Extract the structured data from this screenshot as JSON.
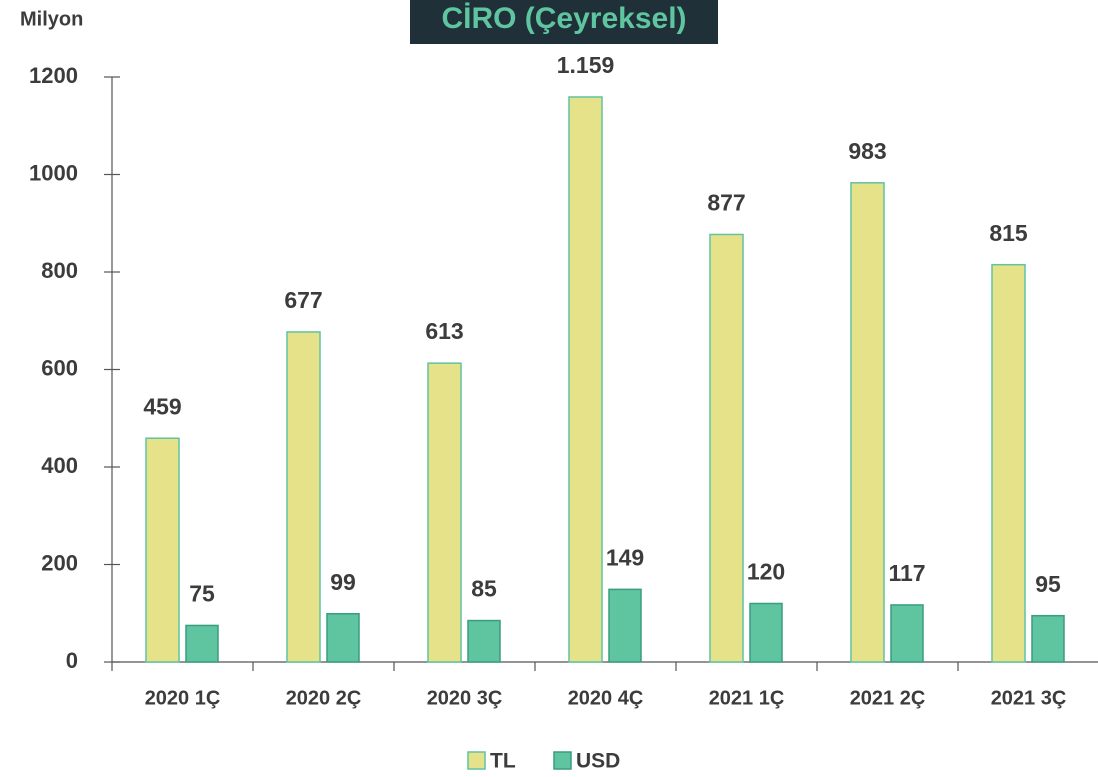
{
  "chart_data": {
    "type": "bar",
    "title": "CİRO (Çeyreksel)",
    "y_label": "Milyon",
    "categories": [
      "2020 1Ç",
      "2020 2Ç",
      "2020 3Ç",
      "2020 4Ç",
      "2021 1Ç",
      "2021 2Ç",
      "2021 3Ç"
    ],
    "series": [
      {
        "name": "TL",
        "color": "#e6e28a",
        "values": [
          459,
          677,
          613,
          1159,
          877,
          983,
          815
        ],
        "value_labels": [
          "459",
          "677",
          "613",
          "1.159",
          "877",
          "983",
          "815"
        ]
      },
      {
        "name": "USD",
        "color": "#5fc4a0",
        "values": [
          75,
          99,
          85,
          149,
          120,
          117,
          95
        ]
      }
    ],
    "ylim": [
      0,
      1200
    ],
    "yticks": [
      0,
      200,
      400,
      600,
      800,
      1000,
      1200
    ],
    "grid": false,
    "legend": "bottom"
  }
}
